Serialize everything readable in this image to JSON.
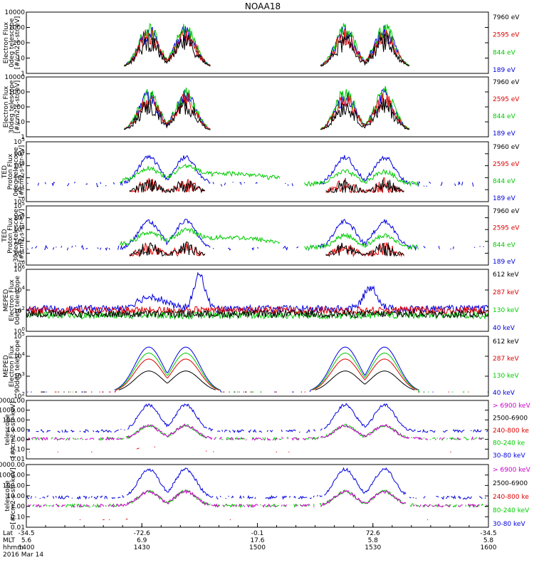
{
  "title": "NOAA18",
  "colors": {
    "black": "#000000",
    "red": "#dd0000",
    "green": "#00cc00",
    "blue": "#0000dd",
    "magenta": "#cc00cc"
  },
  "chart_data": [
    {
      "type": "line",
      "ylabel": [
        "Electron Flux",
        "0deg telescope",
        "[#/cm2-s-str-eV]"
      ],
      "yscale": "log",
      "ylim": [
        1,
        10000
      ],
      "yticks": [
        "10000",
        "1000",
        "100",
        "10",
        "1"
      ],
      "legend": [
        {
          "label": "7960 eV",
          "color": "black"
        },
        {
          "label": "2595 eV",
          "color": "red"
        },
        {
          "label": "844 eV",
          "color": "green"
        },
        {
          "label": "189 eV",
          "color": "blue"
        }
      ]
    },
    {
      "type": "line",
      "ylabel": [
        "Electron Flux",
        "30deg telescope",
        "[#/cm2-s-str-eV]"
      ],
      "yscale": "log",
      "ylim": [
        1,
        10000
      ],
      "yticks": [
        "10000",
        "1000",
        "100",
        "10",
        "1"
      ],
      "legend": [
        {
          "label": "7960 eV",
          "color": "black"
        },
        {
          "label": "2595 eV",
          "color": "red"
        },
        {
          "label": "844 eV",
          "color": "green"
        },
        {
          "label": "189 eV",
          "color": "blue"
        }
      ]
    },
    {
      "type": "line",
      "ylabel": [
        "TED",
        "Proton Flux",
        "0deg telescope",
        "[#/cm2-s-str-eV]"
      ],
      "yscale": "log",
      "ylim": [
        1,
        100000
      ],
      "yticks": [
        "10^5",
        "10^4",
        "10^3",
        "10^2",
        "10^1",
        "10^0"
      ],
      "legend": [
        {
          "label": "7960 eV",
          "color": "black"
        },
        {
          "label": "2595 eV",
          "color": "red"
        },
        {
          "label": "844 eV",
          "color": "green"
        },
        {
          "label": "189 eV",
          "color": "blue"
        }
      ]
    },
    {
      "type": "line",
      "ylabel": [
        "TED",
        "Proton Flux",
        "30deg telescope",
        "[#/cm2-s-str-eV]"
      ],
      "yscale": "log",
      "ylim": [
        1,
        100000
      ],
      "yticks": [
        "10^5",
        "10^4",
        "10^3",
        "10^2",
        "10^1",
        "10^0"
      ],
      "legend": [
        {
          "label": "7960 eV",
          "color": "black"
        },
        {
          "label": "2595 eV",
          "color": "red"
        },
        {
          "label": "844 eV",
          "color": "green"
        },
        {
          "label": "189 eV",
          "color": "blue"
        }
      ]
    },
    {
      "type": "line",
      "ylabel": [
        "MEPED",
        "Electron Flux",
        "0deg telescope"
      ],
      "yscale": "log",
      "ylim": [
        1,
        1000000
      ],
      "yticks": [
        "10^6",
        "10^4",
        "10^2",
        "10^0"
      ],
      "legend": [
        {
          "label": "612 keV",
          "color": "black"
        },
        {
          "label": "287 keV",
          "color": "red"
        },
        {
          "label": "130 keV",
          "color": "green"
        },
        {
          "label": "40 keV",
          "color": "blue"
        }
      ]
    },
    {
      "type": "line",
      "ylabel": [
        "MEPED",
        "Electron Flux",
        "90deg telescope"
      ],
      "yscale": "log",
      "ylim": [
        100,
        100000
      ],
      "yticks": [
        "10^5",
        "10^4",
        "10^3",
        "10^2"
      ],
      "legend": [
        {
          "label": "612 keV",
          "color": "black"
        },
        {
          "label": "287 keV",
          "color": "red"
        },
        {
          "label": "130 keV",
          "color": "green"
        },
        {
          "label": "40 keV",
          "color": "blue"
        }
      ]
    },
    {
      "type": "line",
      "ylabel": [
        "telescope",
        "[#/cm2-s-str-keV]"
      ],
      "yscale": "log",
      "ylim": [
        0.01,
        10000
      ],
      "yticks": [
        "10000.00",
        "1000.00",
        "100.00",
        "10.00",
        "1.00",
        "0.10",
        "0.01"
      ],
      "legend": [
        {
          "label": "> 6900 keV",
          "color": "magenta"
        },
        {
          "label": "2500-6900",
          "color": "black"
        },
        {
          "label": "240-800 ke",
          "color": "red"
        },
        {
          "label": "80-240 ke",
          "color": "green"
        },
        {
          "label": "30-80 keV",
          "color": "blue"
        }
      ]
    },
    {
      "type": "line",
      "ylabel": [
        "telescope",
        "[#/cm2-s-str-keV]"
      ],
      "yscale": "log",
      "ylim": [
        0.01,
        10000
      ],
      "yticks": [
        "10000.00",
        "1000.00",
        "100.00",
        "10.00",
        "1.00",
        "0.10",
        "0.01"
      ],
      "legend": [
        {
          "label": "> 6900 keV",
          "color": "magenta"
        },
        {
          "label": "2500-6900",
          "color": "black"
        },
        {
          "label": "240-800 ke",
          "color": "red"
        },
        {
          "label": "80-240 keV",
          "color": "green"
        },
        {
          "label": "30-80 keV",
          "color": "blue"
        }
      ]
    }
  ],
  "x_axis": {
    "row_labels": [
      "Lat",
      "MLT",
      "hhmm",
      "2016 Mar 14"
    ],
    "ticks": [
      {
        "lat": "-34.5",
        "mlt": "5.6",
        "hhmm": "1400"
      },
      {
        "lat": "-72.6",
        "mlt": "6.9",
        "hhmm": "1430"
      },
      {
        "lat": "-0.1",
        "mlt": "17.6",
        "hhmm": "1500"
      },
      {
        "lat": "72.6",
        "mlt": "5.8",
        "hhmm": "1530"
      },
      {
        "lat": "-34.5",
        "mlt": "5.8",
        "hhmm": "1600"
      }
    ]
  }
}
